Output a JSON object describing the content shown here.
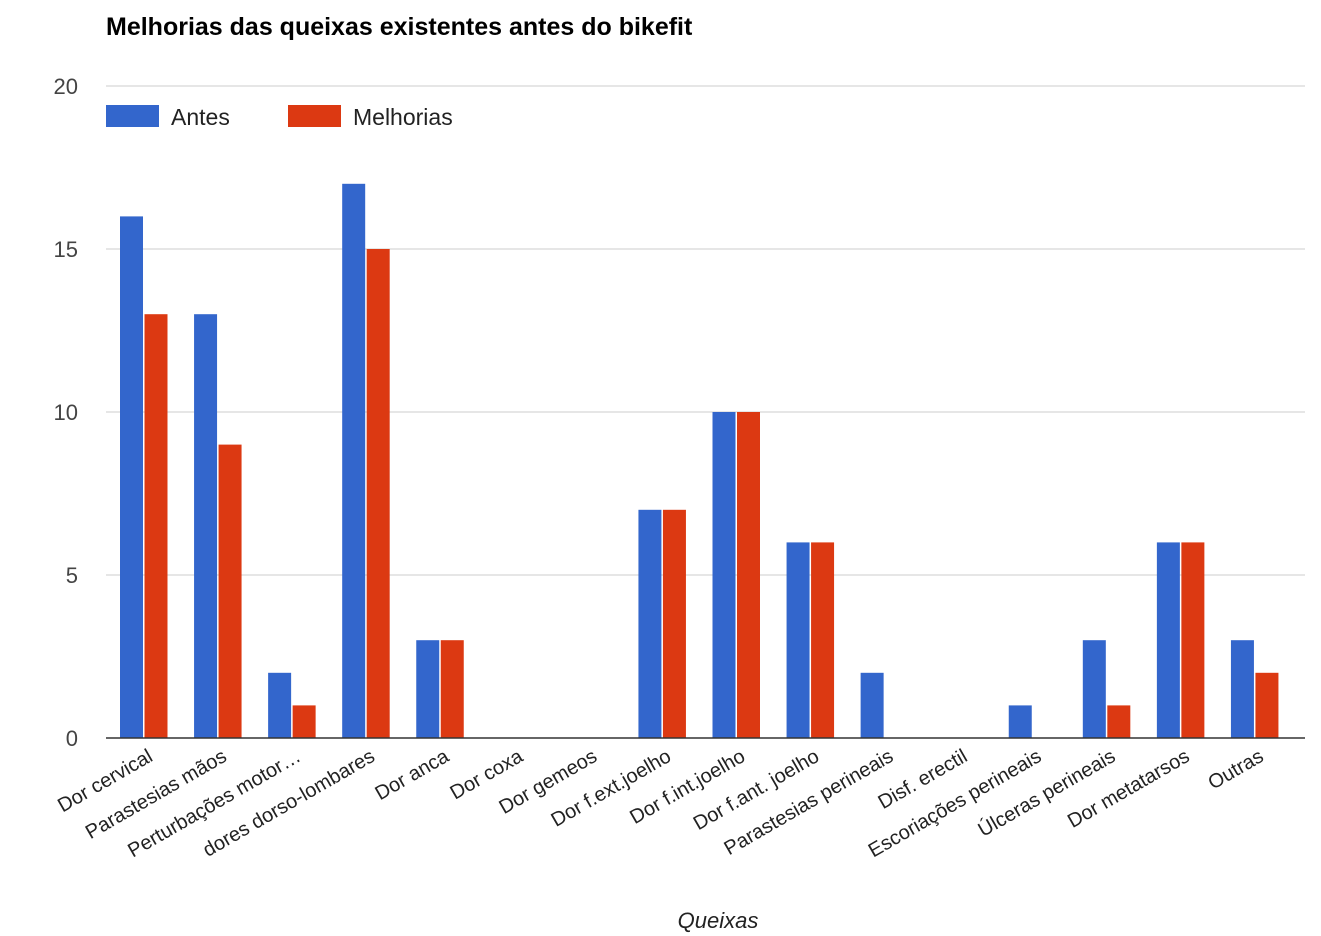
{
  "chart_data": {
    "type": "bar",
    "title": "Melhorias das queixas existentes antes do bikefit",
    "xlabel": "Queixas",
    "ylabel": "",
    "ylim": [
      0,
      20
    ],
    "yticks": [
      0,
      5,
      10,
      15,
      20
    ],
    "grid": true,
    "legend_position": "top-left",
    "categories": [
      "Dor cervical",
      "Parastesias mãos",
      "Perturbações motor…",
      "dores dorso-lombares",
      "Dor anca",
      "Dor coxa",
      "Dor gemeos",
      "Dor f.ext.joelho",
      "Dor f.int.joelho",
      "Dor f.ant. joelho",
      "Parastesias perineais",
      "Disf. erectil",
      "Escoriações perineais",
      "Úlceras perineais",
      "Dor metatarsos",
      "Outras"
    ],
    "series": [
      {
        "name": "Antes",
        "color": "#3366cc",
        "values": [
          16,
          13,
          2,
          17,
          3,
          0,
          0,
          7,
          10,
          6,
          2,
          0,
          1,
          3,
          6,
          3
        ]
      },
      {
        "name": "Melhorias",
        "color": "#dc3912",
        "values": [
          13,
          9,
          1,
          15,
          3,
          0,
          0,
          7,
          10,
          6,
          0,
          0,
          0,
          1,
          6,
          2
        ]
      }
    ]
  }
}
